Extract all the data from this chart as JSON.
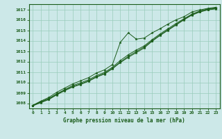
{
  "xlabel": "Graphe pression niveau de la mer (hPa)",
  "bg_color": "#cce8e8",
  "grid_color": "#99ccbb",
  "line_color": "#1a5c1a",
  "xlim": [
    -0.5,
    23.5
  ],
  "ylim": [
    1007.5,
    1017.5
  ],
  "yticks": [
    1008,
    1009,
    1010,
    1011,
    1012,
    1013,
    1014,
    1015,
    1016,
    1017
  ],
  "xticks": [
    0,
    1,
    2,
    3,
    4,
    5,
    6,
    7,
    8,
    9,
    10,
    11,
    12,
    13,
    14,
    15,
    16,
    17,
    18,
    19,
    20,
    21,
    22,
    23
  ],
  "line1": [
    1007.8,
    1008.2,
    1008.55,
    1009.05,
    1009.45,
    1009.85,
    1010.15,
    1010.45,
    1010.9,
    1011.2,
    1011.7,
    1013.85,
    1014.75,
    1014.15,
    1014.25,
    1014.75,
    1015.15,
    1015.6,
    1016.0,
    1016.3,
    1016.75,
    1016.95,
    1017.1,
    1017.2
  ],
  "line2": [
    1007.8,
    1008.15,
    1008.45,
    1008.9,
    1009.3,
    1009.7,
    1009.95,
    1010.25,
    1010.65,
    1010.95,
    1011.45,
    1012.1,
    1012.65,
    1013.1,
    1013.5,
    1014.1,
    1014.65,
    1015.15,
    1015.65,
    1016.1,
    1016.55,
    1016.85,
    1017.05,
    1017.15
  ],
  "line3": [
    1007.8,
    1008.1,
    1008.4,
    1008.85,
    1009.25,
    1009.6,
    1009.85,
    1010.15,
    1010.55,
    1010.85,
    1011.35,
    1011.95,
    1012.5,
    1012.95,
    1013.4,
    1014.0,
    1014.55,
    1015.05,
    1015.55,
    1016.05,
    1016.5,
    1016.8,
    1017.0,
    1017.1
  ],
  "line4": [
    1007.75,
    1008.05,
    1008.35,
    1008.8,
    1009.2,
    1009.55,
    1009.8,
    1010.1,
    1010.5,
    1010.8,
    1011.3,
    1011.9,
    1012.4,
    1012.85,
    1013.3,
    1013.95,
    1014.5,
    1015.0,
    1015.5,
    1016.0,
    1016.45,
    1016.75,
    1016.95,
    1017.05
  ]
}
